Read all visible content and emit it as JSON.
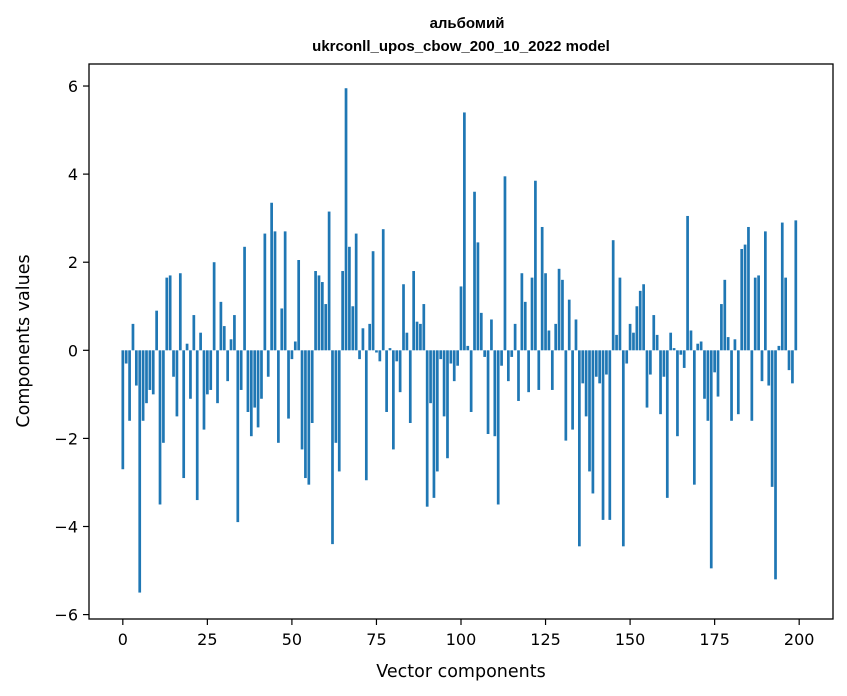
{
  "chart_data": {
    "type": "bar",
    "title": "альбомий",
    "subtitle": "ukrconll_upos_cbow_200_10_2022 model",
    "xlabel": "Vector components",
    "ylabel": "Components values",
    "xlim": [
      -10,
      210
    ],
    "ylim": [
      -6.1,
      6.5
    ],
    "xticks": [
      0,
      25,
      50,
      75,
      100,
      125,
      150,
      175,
      200
    ],
    "yticks": [
      -6,
      -4,
      -2,
      0,
      2,
      4,
      6
    ],
    "xtick_labels": [
      "0",
      "25",
      "50",
      "75",
      "100",
      "125",
      "150",
      "175",
      "200"
    ],
    "ytick_labels": [
      "−6",
      "−4",
      "−2",
      "0",
      "2",
      "4",
      "6"
    ],
    "bar_color": "#1f77b4",
    "grid": false,
    "legend": "none",
    "x_start": 0,
    "values": [
      -2.7,
      -0.3,
      -1.6,
      0.6,
      -0.8,
      -5.5,
      -1.6,
      -1.2,
      -0.9,
      -1.0,
      0.9,
      -3.5,
      -2.1,
      1.65,
      1.7,
      -0.6,
      -1.5,
      1.75,
      -2.9,
      0.15,
      -1.1,
      0.8,
      -3.4,
      0.4,
      -1.8,
      -1.0,
      -0.9,
      2.0,
      -1.2,
      1.1,
      0.55,
      -0.7,
      0.25,
      0.8,
      -3.9,
      -0.9,
      2.35,
      -1.4,
      -1.95,
      -1.3,
      -1.75,
      -1.1,
      2.65,
      -0.6,
      3.35,
      2.7,
      -2.1,
      0.95,
      2.7,
      -1.55,
      -0.2,
      0.2,
      2.05,
      -2.25,
      -2.9,
      -3.05,
      -1.65,
      1.8,
      1.7,
      1.55,
      1.05,
      3.15,
      -4.4,
      -2.1,
      -2.75,
      1.8,
      5.95,
      2.35,
      1.0,
      2.65,
      -0.2,
      0.5,
      -2.95,
      0.6,
      2.25,
      -0.05,
      -0.25,
      2.75,
      -1.4,
      0.05,
      -2.25,
      -0.25,
      -0.95,
      1.5,
      0.4,
      -1.65,
      1.8,
      0.65,
      0.6,
      1.05,
      -3.55,
      -1.2,
      -3.35,
      -2.75,
      -0.2,
      -1.5,
      -2.45,
      -0.3,
      -0.7,
      -0.35,
      1.45,
      5.4,
      0.1,
      -1.4,
      3.6,
      2.45,
      0.85,
      -0.15,
      -1.9,
      0.7,
      -1.95,
      -3.5,
      -0.35,
      3.95,
      -0.7,
      -0.15,
      0.6,
      -1.15,
      1.75,
      1.1,
      -0.95,
      1.65,
      3.85,
      -0.9,
      2.8,
      1.75,
      0.45,
      -0.9,
      0.6,
      1.85,
      1.6,
      -2.05,
      1.15,
      -1.8,
      0.7,
      -4.45,
      -0.75,
      -1.5,
      -2.75,
      -3.25,
      -0.6,
      -0.75,
      -3.85,
      -0.55,
      -3.85,
      2.5,
      0.35,
      1.65,
      -4.45,
      -0.3,
      0.6,
      0.4,
      1.0,
      1.35,
      1.5,
      -1.3,
      -0.55,
      0.8,
      0.35,
      -1.45,
      -0.6,
      -3.35,
      0.4,
      0.05,
      -1.95,
      -0.1,
      -0.4,
      3.05,
      0.45,
      -3.05,
      0.15,
      0.2,
      -1.1,
      -1.6,
      -4.95,
      -0.5,
      -1.05,
      1.05,
      1.6,
      0.3,
      -1.6,
      0.25,
      -1.45,
      2.3,
      2.4,
      2.8,
      -1.6,
      1.65,
      1.7,
      -0.7,
      2.7,
      -0.8,
      -3.1,
      -5.2,
      0.1,
      2.9,
      1.65,
      -0.45,
      -0.75,
      2.95
    ]
  }
}
